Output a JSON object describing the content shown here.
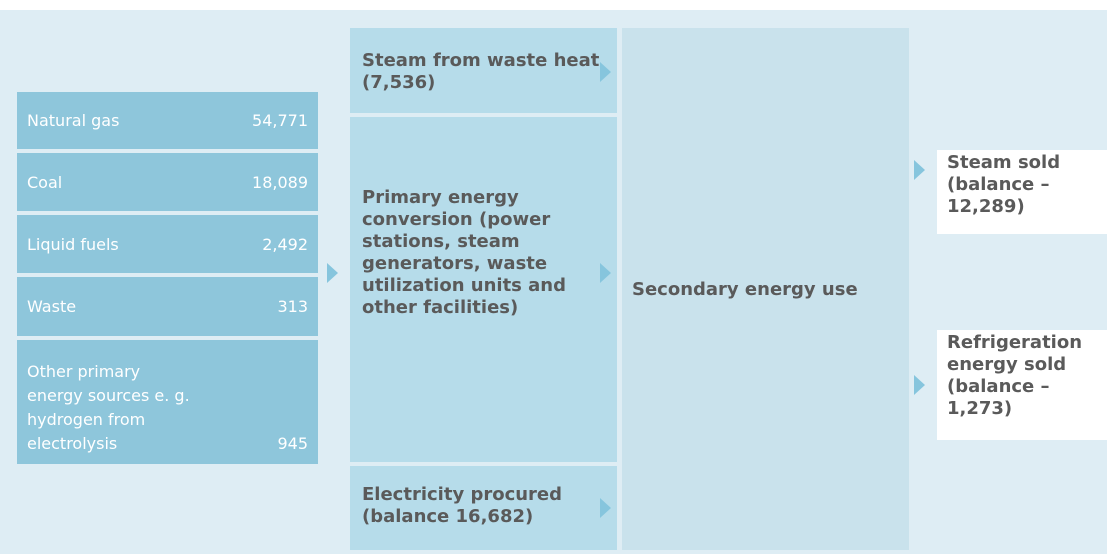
{
  "sources": [
    {
      "label": "Natural gas",
      "value": "54,771"
    },
    {
      "label": "Coal",
      "value": "18,089"
    },
    {
      "label": "Liquid fuels",
      "value": "2,492"
    },
    {
      "label": "Waste",
      "value": "313"
    },
    {
      "label": "Other primary energy sources e. g. hydrogen from electrolysis",
      "value": "945"
    }
  ],
  "conversion": {
    "steam": "Steam from waste heat (7,536)",
    "primary": "Primary energy conversion (power stations, steam generators, waste utilization units and other facilities)",
    "electricity": "Electricity procured (balance 16,682)"
  },
  "secondary": "Secondary energy use",
  "outputs": [
    "Steam sold (balance –12,289)",
    "Refrigeration energy sold (balance –1,273)"
  ]
}
